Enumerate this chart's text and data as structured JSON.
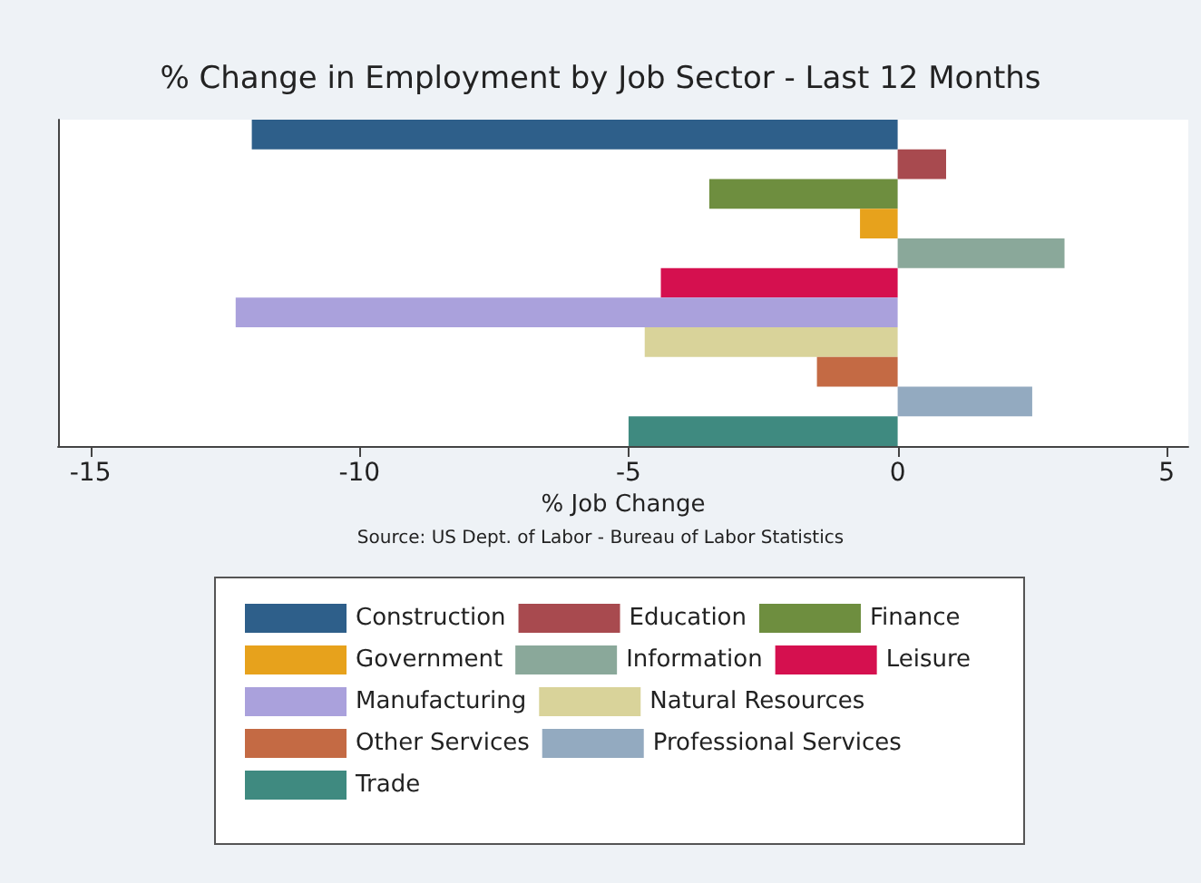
{
  "chart_data": {
    "type": "bar",
    "orientation": "horizontal",
    "stacked": true,
    "title": "% Change in Employment by Job Sector - Last 12 Months",
    "xlabel": "% Job Change",
    "annotations": [
      "Source: US Dept. of Labor - Bureau of Labor Statistics"
    ],
    "categories": [
      null,
      null,
      null,
      null,
      null,
      null,
      null,
      null,
      null,
      null,
      null
    ],
    "xlim": [
      -15.6,
      5.4
    ],
    "xticks": [
      -15,
      -10,
      -5,
      0,
      5
    ],
    "grid": false,
    "legend": "bottom",
    "series": [
      {
        "name": "Construction",
        "color": "#2e5f8a",
        "values": [
          -12,
          null,
          null,
          null,
          null,
          null,
          null,
          null,
          null,
          null,
          null
        ]
      },
      {
        "name": "Education",
        "color": "#a84a4f",
        "values": [
          null,
          0.9,
          null,
          null,
          null,
          null,
          null,
          null,
          null,
          null,
          null
        ]
      },
      {
        "name": "Finance",
        "color": "#6e8e3f",
        "values": [
          null,
          null,
          -3.5,
          null,
          null,
          null,
          null,
          null,
          null,
          null,
          null
        ]
      },
      {
        "name": "Government",
        "color": "#e7a21c",
        "values": [
          null,
          null,
          null,
          -0.7,
          null,
          null,
          null,
          null,
          null,
          null,
          null
        ]
      },
      {
        "name": "Information",
        "color": "#8aa89a",
        "values": [
          null,
          null,
          null,
          null,
          3.1,
          null,
          null,
          null,
          null,
          null,
          null
        ]
      },
      {
        "name": "Leisure",
        "color": "#d5104f",
        "values": [
          null,
          null,
          null,
          null,
          null,
          -4.4,
          null,
          null,
          null,
          null,
          null
        ]
      },
      {
        "name": "Manufacturing",
        "color": "#aaa1dc",
        "values": [
          null,
          null,
          null,
          null,
          null,
          null,
          -12.3,
          null,
          null,
          null,
          null
        ]
      },
      {
        "name": "Natural Resources",
        "color": "#d9d39a",
        "values": [
          null,
          null,
          null,
          null,
          null,
          null,
          null,
          -4.7,
          null,
          null,
          null
        ]
      },
      {
        "name": "Other Services",
        "color": "#c46a44",
        "values": [
          null,
          null,
          null,
          null,
          null,
          null,
          null,
          null,
          -1.5,
          null,
          null
        ]
      },
      {
        "name": "Professional Services",
        "color": "#93aac0",
        "values": [
          null,
          null,
          null,
          null,
          null,
          null,
          null,
          null,
          null,
          2.5,
          null
        ]
      },
      {
        "name": "Trade",
        "color": "#3f8a80",
        "values": [
          null,
          null,
          null,
          null,
          null,
          null,
          null,
          null,
          null,
          null,
          -5
        ]
      }
    ]
  }
}
